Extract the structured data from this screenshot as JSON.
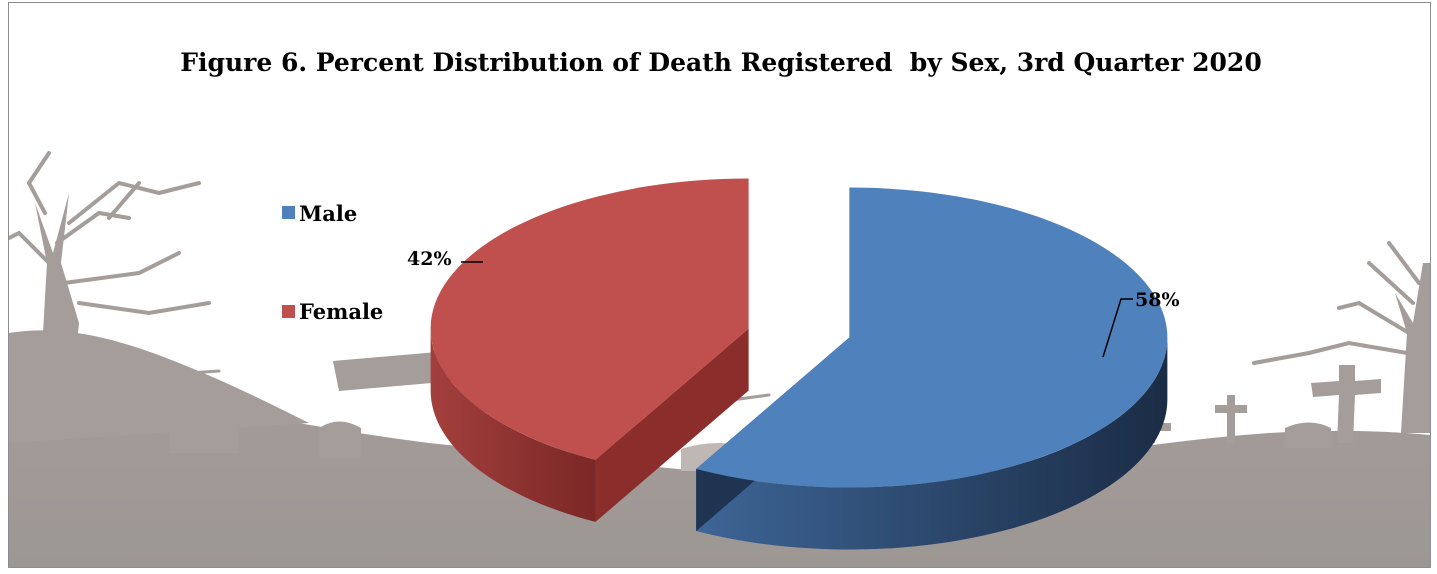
{
  "chart_data": {
    "type": "pie",
    "style": "3d-exploded",
    "title": "Figure 6. Percent Distribution of Death Registered  by Sex, 3rd Quarter 2020",
    "categories": [
      "Male",
      "Female"
    ],
    "values": [
      58,
      42
    ],
    "data_labels": [
      "58%",
      "42%"
    ],
    "colors": [
      "#4f81bd",
      "#c0504d"
    ],
    "side_colors": [
      "#1f3450",
      "#8b2d2b"
    ],
    "legend_position": "left",
    "background": "cemetery silhouette"
  }
}
